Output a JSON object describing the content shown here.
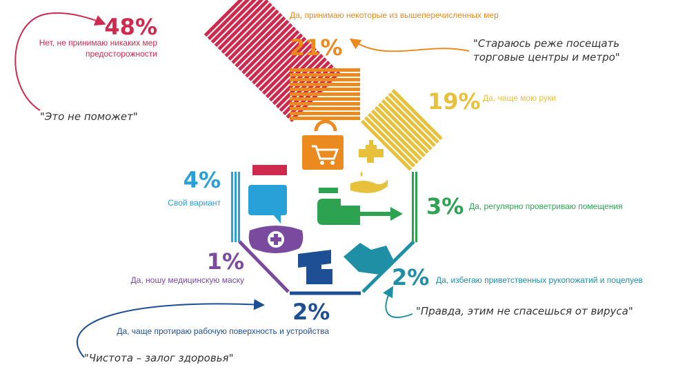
{
  "chart_data": {
    "type": "bar",
    "unit": "%",
    "categories": [
      {
        "id": "none",
        "label": "Нет, не принимаю никаких мер предосторожности",
        "value": 48,
        "percent_label": "48%",
        "color": "#cf2a4e",
        "icon": "mask-empty-icon",
        "quote": "\"Это не поможет\""
      },
      {
        "id": "some",
        "label": "Да, принимаю некоторые из вышеперечисленных мер",
        "value": 21,
        "percent_label": "21%",
        "color": "#ea8a1f",
        "icon": "shopping-bag-icon",
        "quote": "\"Стараюсь реже посещать торговые центры и метро\""
      },
      {
        "id": "hands",
        "label": "Да, чаще мою руки",
        "value": 19,
        "percent_label": "19%",
        "color": "#e8c13c",
        "icon": "faucet-hand-icon",
        "quote": ""
      },
      {
        "id": "ventilate",
        "label": "Да, регулярно проветриваю помещения",
        "value": 3,
        "percent_label": "3%",
        "color": "#2da352",
        "icon": "hand-arrow-icon",
        "quote": ""
      },
      {
        "id": "handshakes",
        "label": "Да, избегаю приветственных рукопожатий и поцелуев",
        "value": 2,
        "percent_label": "2%",
        "color": "#1e8fa5",
        "icon": "handshake-icon",
        "quote": "\"Правда, этим не спасешься от вируса\""
      },
      {
        "id": "wipe",
        "label": "Да, чаще протираю рабочую поверхность и устройства",
        "value": 2,
        "percent_label": "2%",
        "color": "#1e4f94",
        "icon": "wiping-icon",
        "quote": "\"Чистота – залог здоровья\""
      },
      {
        "id": "mask",
        "label": "Да, ношу медицинскую маску",
        "value": 1,
        "percent_label": "1%",
        "color": "#7a4a9e",
        "icon": "medical-mask-icon",
        "quote": ""
      },
      {
        "id": "other",
        "label": "Свой вариант",
        "value": 4,
        "percent_label": "4%",
        "color": "#28a0d8",
        "icon": "speech-bubble-icon",
        "quote": ""
      }
    ]
  }
}
